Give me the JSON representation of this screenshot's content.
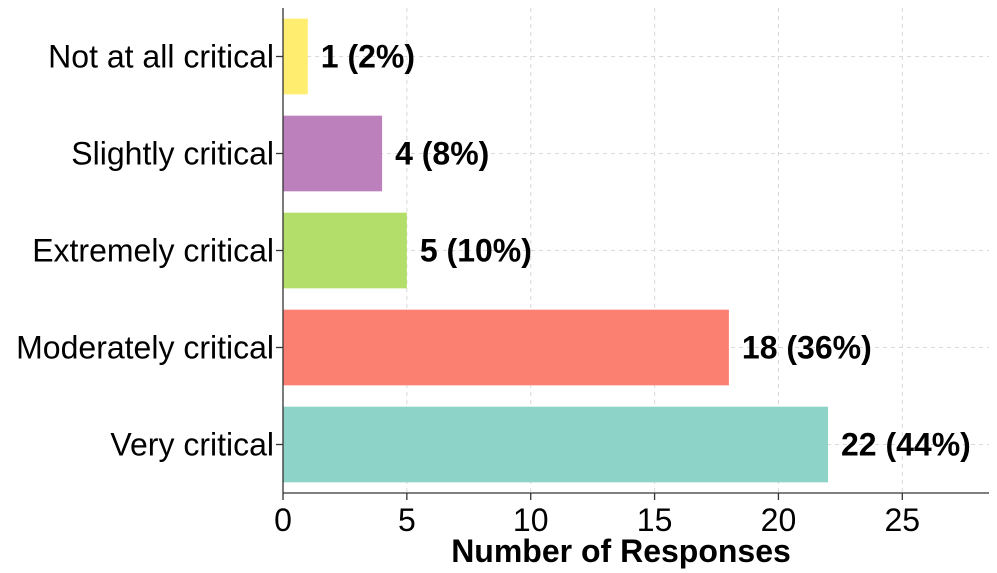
{
  "chart_data": {
    "type": "bar",
    "orientation": "horizontal",
    "categories": [
      "Very critical",
      "Moderately critical",
      "Extremely critical",
      "Slightly critical",
      "Not at all critical"
    ],
    "values": [
      22,
      18,
      5,
      4,
      1
    ],
    "data_labels": [
      "22 (44%)",
      "18 (36%)",
      "5 (10%)",
      "4 (8%)",
      "1 (2%)"
    ],
    "colors": [
      "#8dd3c7",
      "#fb8072",
      "#b3de69",
      "#bc80bd",
      "#ffed6f"
    ],
    "xlabel": "Number of Responses",
    "ylabel": "",
    "xlim": [
      0,
      28.5
    ],
    "xticks": [
      0,
      5,
      10,
      15,
      20,
      25
    ],
    "grid": true
  }
}
